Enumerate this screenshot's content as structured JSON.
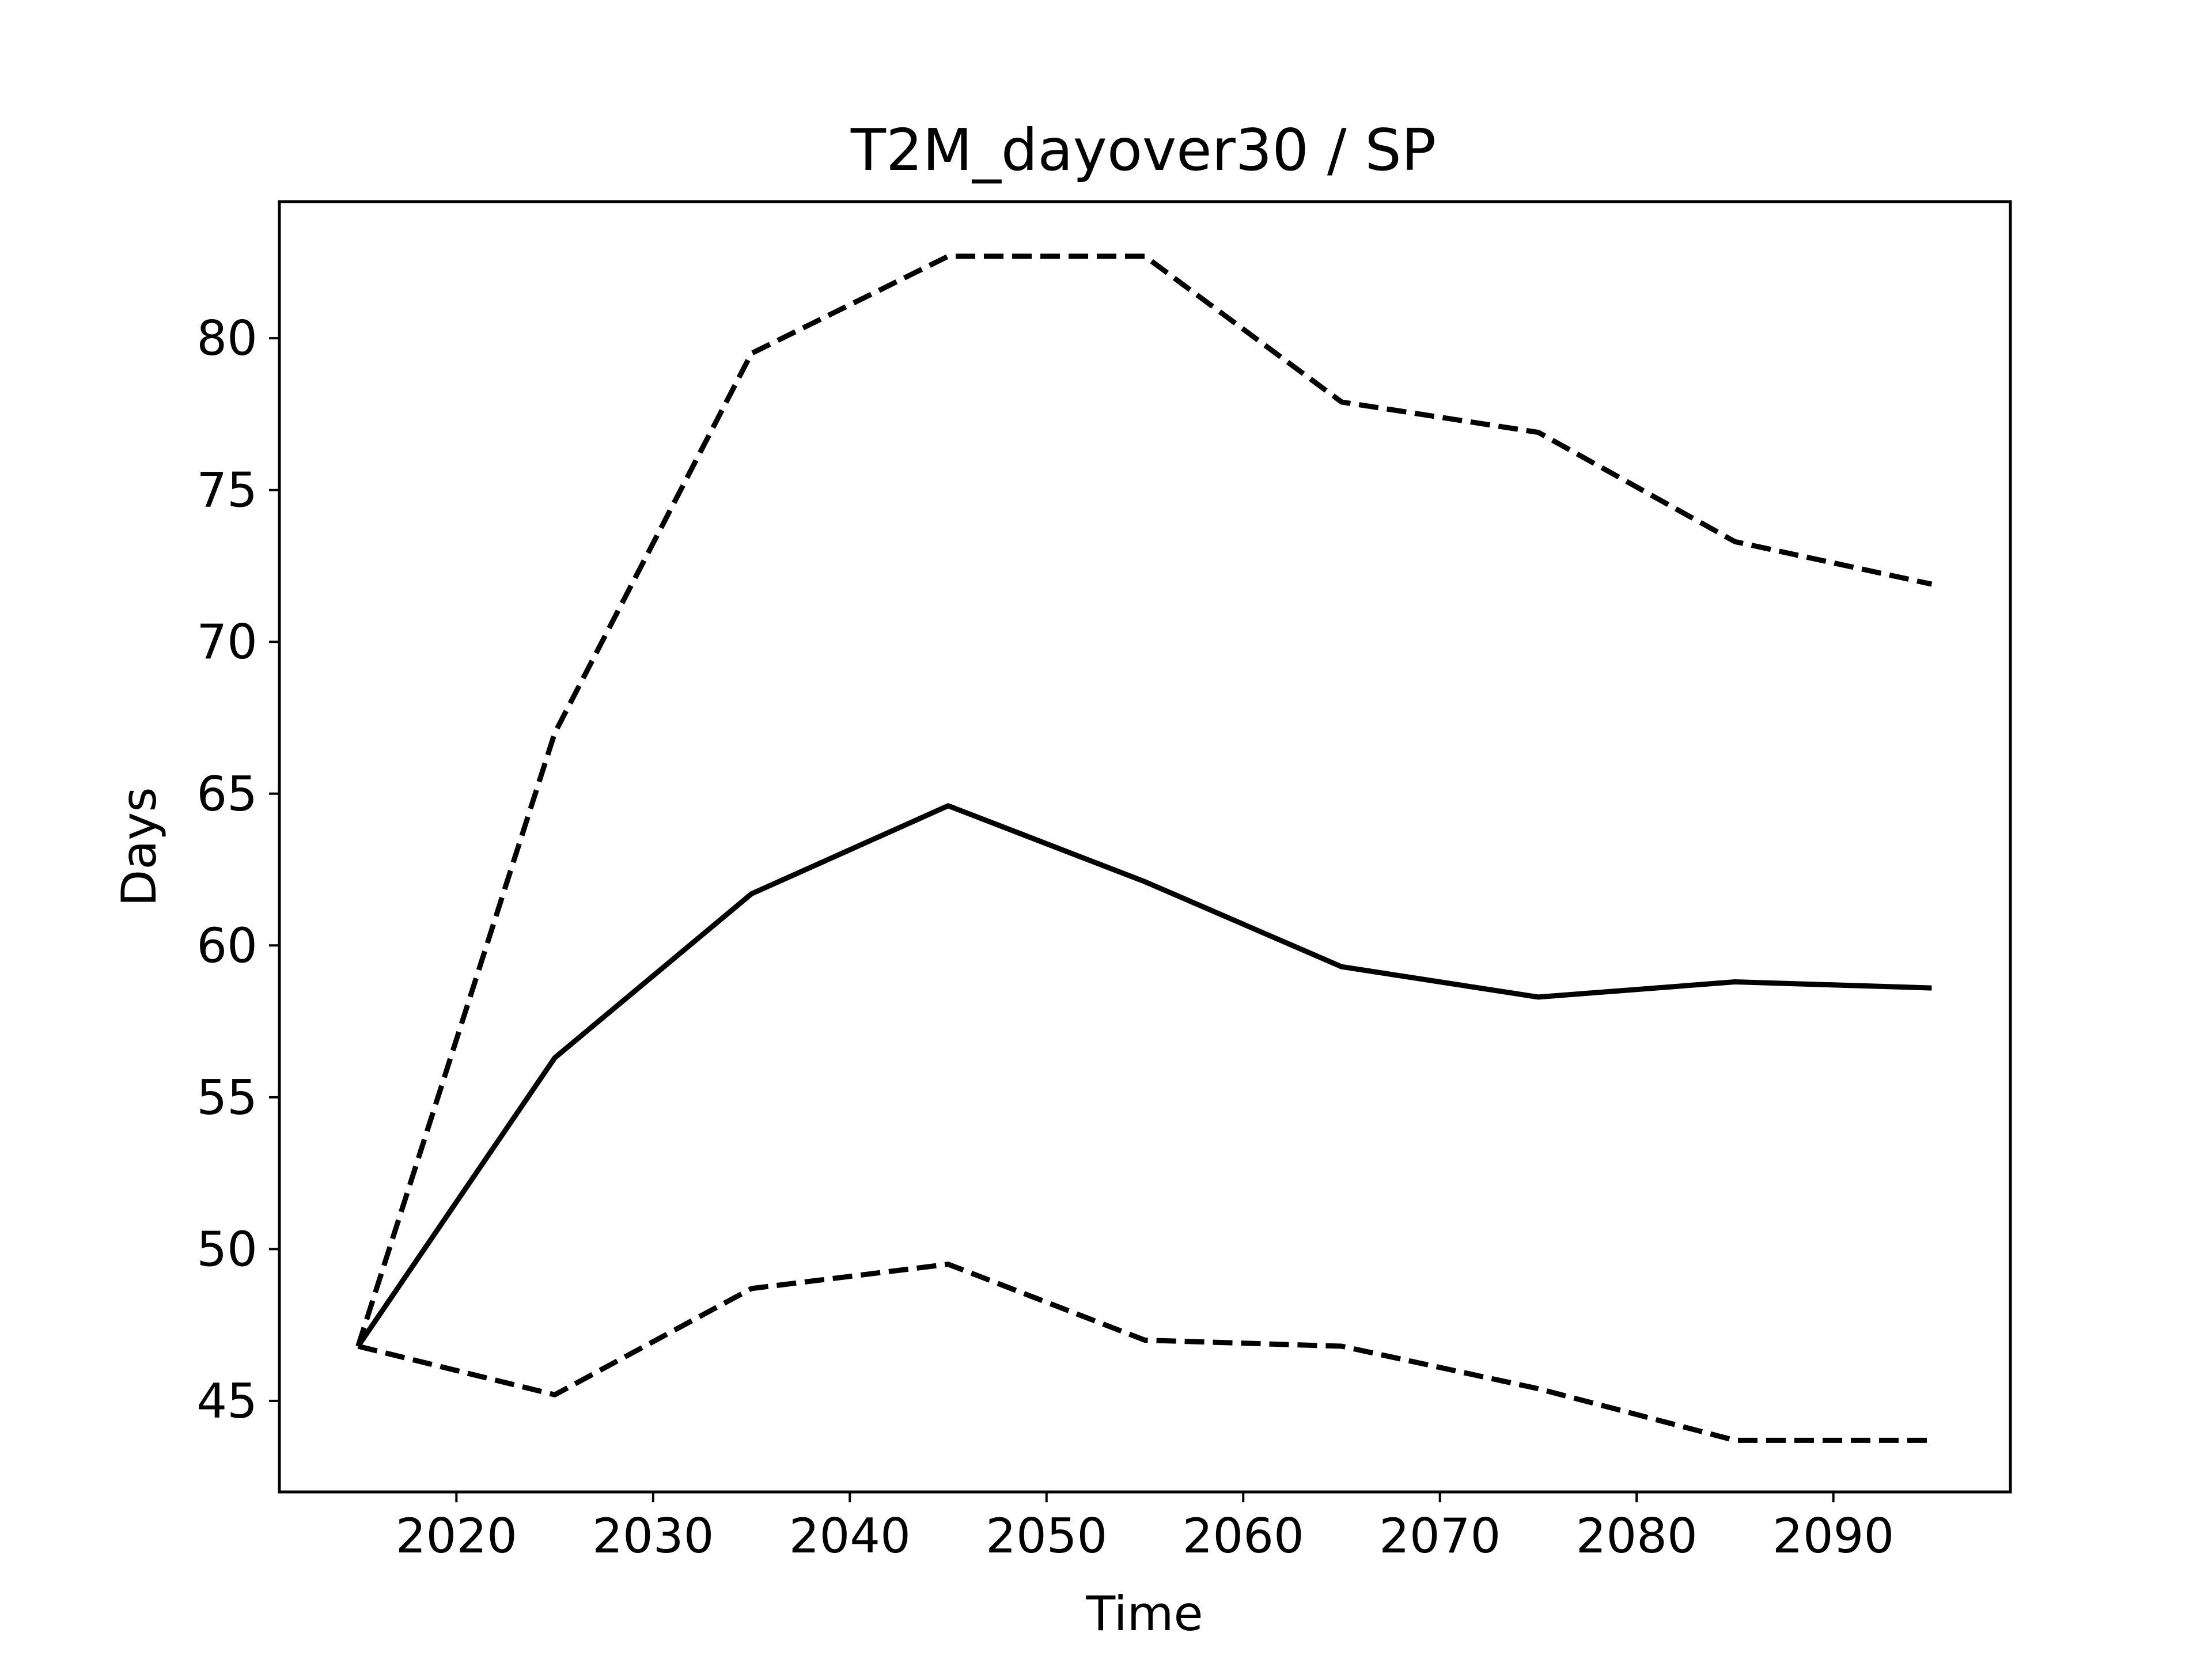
{
  "chart_data": {
    "type": "line",
    "title": "T2M_dayover30 / SP",
    "xlabel": "Time",
    "ylabel": "Days",
    "xlim": [
      2011,
      2099
    ],
    "ylim": [
      42,
      84.5
    ],
    "x_ticks": [
      2020,
      2030,
      2040,
      2050,
      2060,
      2070,
      2080,
      2090
    ],
    "y_ticks": [
      45,
      50,
      55,
      60,
      65,
      70,
      75,
      80
    ],
    "x_tick_labels": [
      "2020",
      "2030",
      "2040",
      "2050",
      "2060",
      "2070",
      "2080",
      "2090"
    ],
    "y_tick_labels": [
      "45",
      "50",
      "55",
      "60",
      "65",
      "70",
      "75",
      "80"
    ],
    "grid": false,
    "legend": "none",
    "x": [
      2015,
      2025,
      2035,
      2045,
      2055,
      2065,
      2075,
      2085,
      2095
    ],
    "series": [
      {
        "style": "solid",
        "color": "#000000",
        "values": [
          46.8,
          56.3,
          61.7,
          64.6,
          62.1,
          59.3,
          58.3,
          58.8,
          58.6
        ]
      },
      {
        "style": "dashed",
        "color": "#000000",
        "values": [
          46.8,
          67.0,
          79.5,
          82.7,
          82.7,
          77.9,
          76.9,
          73.3,
          71.9
        ]
      },
      {
        "style": "dashed",
        "color": "#000000",
        "values": [
          46.8,
          45.2,
          48.7,
          49.5,
          47.0,
          46.8,
          45.4,
          43.7,
          43.7
        ]
      }
    ]
  }
}
